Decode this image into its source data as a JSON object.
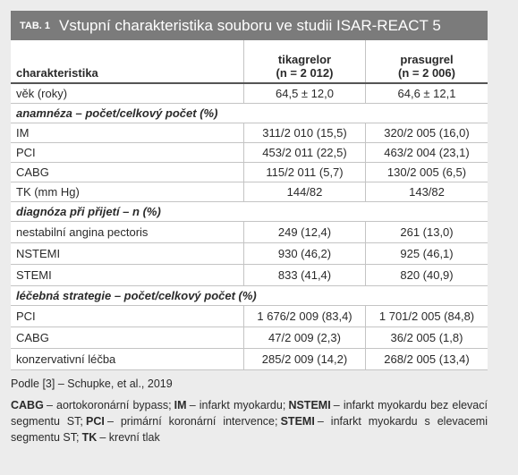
{
  "header": {
    "label": "TAB. 1",
    "title": "Vstupní charakteristika souboru ve studii ISAR-REACT 5"
  },
  "table": {
    "columns": [
      {
        "name": "charakteristika"
      },
      {
        "name": "tikagrelor",
        "n": "(n = 2 012)"
      },
      {
        "name": "prasugrel",
        "n": "(n = 2 006)"
      }
    ],
    "rows": [
      {
        "label": "věk (roky)",
        "values": [
          "64,5 ± 12,0",
          "64,6 ± 12,1"
        ]
      },
      {
        "section": "anamnéza – počet/celkový počet (%)"
      },
      {
        "label": "IM",
        "values": [
          "311/2 010 (15,5)",
          "320/2 005 (16,0)"
        ]
      },
      {
        "label": "PCI",
        "values": [
          "453/2 011 (22,5)",
          "463/2 004 (23,1)"
        ]
      },
      {
        "label": "CABG",
        "values": [
          "115/2 011 (5,7)",
          "130/2 005 (6,5)"
        ]
      },
      {
        "label": "TK (mm Hg)",
        "values": [
          "144/82",
          "143/82"
        ]
      },
      {
        "section": "diagnóza při přijetí – n (%)"
      },
      {
        "label": "nestabilní angina pectoris",
        "values": [
          "249 (12,4)",
          "261 (13,0)"
        ]
      },
      {
        "label": "NSTEMI",
        "values": [
          "930 (46,2)",
          "925 (46,1)"
        ]
      },
      {
        "label": "STEMI",
        "values": [
          "833 (41,4)",
          "820 (40,9)"
        ]
      },
      {
        "section": "léčebná strategie – počet/celkový počet (%)"
      },
      {
        "label": "PCI",
        "values": [
          "1 676/2 009 (83,4)",
          "1 701/2 005 (84,8)"
        ]
      },
      {
        "label": "CABG",
        "values": [
          "47/2 009 (2,3)",
          "36/2 005 (1,8)"
        ]
      },
      {
        "label": "konzervativní léčba",
        "values": [
          "285/2 009 (14,2)",
          "268/2 005 (13,4)"
        ]
      }
    ]
  },
  "source": "Podle [3] – Schupke, et al., 2019",
  "footnote": [
    {
      "abbr": "CABG",
      "text": "– aortokoronární bypass;"
    },
    {
      "abbr": "IM",
      "text": "– infarkt myokardu;"
    },
    {
      "abbr": "NSTEMI",
      "text": "– infarkt myokardu bez elevací segmentu ST;"
    },
    {
      "abbr": "PCI",
      "text": "– primární koronární intervence;"
    },
    {
      "abbr": "STEMI",
      "text": "– infarkt myokardu s elevacemi segmentu ST;"
    },
    {
      "abbr": "TK",
      "text": "– krevní tlak"
    }
  ]
}
